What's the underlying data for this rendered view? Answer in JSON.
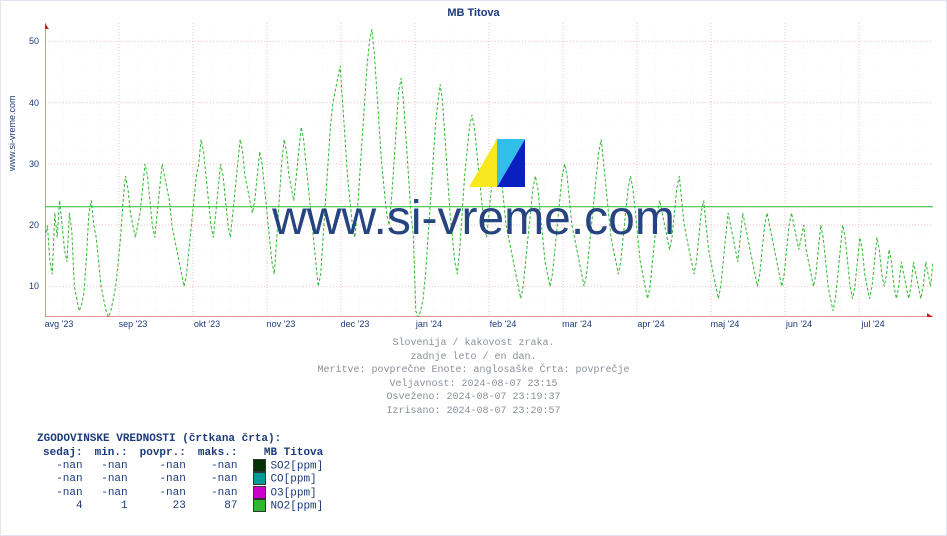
{
  "chart": {
    "type": "line",
    "title": "MB Titova",
    "site_ylabel": "www.si-vreme.com",
    "background_color": "#ffffff",
    "grid_color_major": "#f5c0c0",
    "grid_color_minor": "#fdeeee",
    "series_color": "#2fb82f",
    "series_dash": "3,2",
    "avg_line_color": "#2fb82f",
    "avg_line_value": 23,
    "ylim": [
      5,
      53
    ],
    "ytick_step": 10,
    "yticks": [
      10,
      20,
      30,
      40,
      50
    ],
    "x_labels": [
      "avg '23",
      "sep '23",
      "okt '23",
      "nov '23",
      "dec '23",
      "jan '24",
      "feb '24",
      "mar '24",
      "apr '24",
      "maj '24",
      "jun '24",
      "jul '24"
    ],
    "arrow_color": "#d02020",
    "values": [
      18,
      20,
      14,
      12,
      22,
      18,
      24,
      20,
      16,
      14,
      22,
      19,
      10,
      8,
      6,
      7,
      9,
      15,
      22,
      24,
      20,
      18,
      14,
      10,
      8,
      6,
      5,
      6,
      8,
      10,
      14,
      18,
      24,
      28,
      26,
      22,
      20,
      18,
      20,
      22,
      26,
      30,
      28,
      24,
      20,
      18,
      22,
      26,
      30,
      28,
      26,
      24,
      20,
      18,
      16,
      14,
      12,
      10,
      12,
      16,
      20,
      24,
      28,
      30,
      34,
      32,
      28,
      24,
      20,
      18,
      22,
      26,
      30,
      28,
      24,
      20,
      18,
      22,
      26,
      30,
      34,
      32,
      28,
      26,
      24,
      22,
      24,
      28,
      32,
      30,
      26,
      22,
      18,
      14,
      12,
      18,
      24,
      30,
      34,
      32,
      28,
      26,
      24,
      28,
      32,
      36,
      34,
      30,
      26,
      22,
      18,
      14,
      10,
      12,
      18,
      24,
      30,
      36,
      40,
      42,
      44,
      46,
      40,
      34,
      28,
      24,
      20,
      18,
      22,
      28,
      34,
      40,
      46,
      50,
      52,
      48,
      42,
      36,
      30,
      26,
      22,
      20,
      24,
      30,
      36,
      42,
      44,
      40,
      34,
      28,
      22,
      18,
      6,
      5,
      6,
      8,
      12,
      18,
      24,
      30,
      36,
      40,
      43,
      40,
      34,
      28,
      22,
      18,
      14,
      12,
      16,
      22,
      28,
      32,
      36,
      38,
      36,
      32,
      28,
      24,
      20,
      18,
      22,
      26,
      30,
      34,
      32,
      28,
      24,
      20,
      18,
      16,
      14,
      12,
      10,
      8,
      10,
      14,
      18,
      22,
      26,
      28,
      26,
      22,
      18,
      14,
      12,
      10,
      12,
      16,
      20,
      24,
      28,
      30,
      28,
      24,
      20,
      18,
      16,
      14,
      12,
      10,
      12,
      16,
      20,
      24,
      28,
      32,
      34,
      30,
      26,
      22,
      18,
      16,
      14,
      12,
      14,
      18,
      22,
      26,
      28,
      26,
      22,
      18,
      14,
      12,
      10,
      8,
      10,
      14,
      18,
      22,
      24,
      22,
      20,
      18,
      16,
      18,
      22,
      26,
      28,
      24,
      20,
      18,
      16,
      14,
      12,
      14,
      18,
      22,
      24,
      20,
      16,
      14,
      12,
      10,
      8,
      10,
      14,
      18,
      22,
      20,
      18,
      16,
      14,
      18,
      22,
      20,
      18,
      16,
      14,
      12,
      10,
      12,
      16,
      20,
      22,
      20,
      18,
      16,
      14,
      12,
      10,
      12,
      16,
      20,
      22,
      20,
      18,
      16,
      18,
      20,
      16,
      14,
      12,
      10,
      12,
      16,
      20,
      18,
      14,
      10,
      8,
      6,
      8,
      12,
      16,
      20,
      18,
      14,
      10,
      8,
      10,
      14,
      18,
      16,
      12,
      10,
      8,
      10,
      14,
      18,
      16,
      12,
      10,
      12,
      16,
      14,
      10,
      8,
      10,
      14,
      12,
      10,
      8,
      10,
      14,
      12,
      10,
      8,
      10,
      14,
      12,
      10,
      14
    ]
  },
  "meta": {
    "line1": "Slovenija / kakovost zraka.",
    "line2": "zadnje leto / en dan.",
    "line3": "Meritve: povprečne  Enote: anglosaške  Črta: povprečje",
    "line4": "Veljavnost: 2024-08-07 23:15",
    "line5": "Osveženo: 2024-08-07 23:19:37",
    "line6": "Izrisano: 2024-08-07 23:20:57"
  },
  "table": {
    "title": "ZGODOVINSKE VREDNOSTI (črtkana črta):",
    "headers": {
      "now": "sedaj:",
      "min": "min.:",
      "avg": "povpr.:",
      "max": "maks.:",
      "station": "MB Titova"
    },
    "rows": [
      {
        "now": "-nan",
        "min": "-nan",
        "avg": "-nan",
        "max": "-nan",
        "swatch": "#003300",
        "label": "SO2[ppm]"
      },
      {
        "now": "-nan",
        "min": "-nan",
        "avg": "-nan",
        "max": "-nan",
        "swatch": "#009999",
        "label": "CO[ppm]"
      },
      {
        "now": "-nan",
        "min": "-nan",
        "avg": "-nan",
        "max": "-nan",
        "swatch": "#cc00cc",
        "label": "O3[ppm]"
      },
      {
        "now": "4",
        "min": "1",
        "avg": "23",
        "max": "87",
        "swatch": "#2fb82f",
        "label": "NO2[ppm]"
      }
    ]
  },
  "watermark": {
    "text": "www.si-vreme.com",
    "text_color": "#1a3a7a",
    "logo_colors": {
      "yellow": "#f9e81e",
      "blue": "#0a1fbf",
      "cyan": "#2fbfe8"
    }
  }
}
